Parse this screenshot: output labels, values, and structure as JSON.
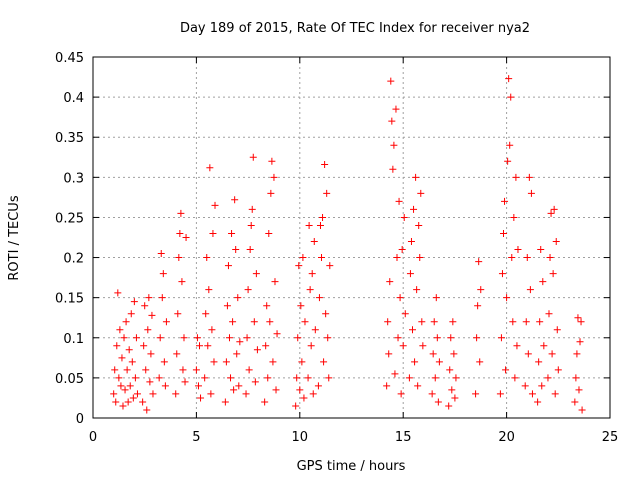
{
  "chart_data": {
    "type": "scatter",
    "title": "Day 189 of 2015, Rate Of TEC Index for receiver nya2",
    "xlabel": "GPS time / hours",
    "ylabel": "ROTI / TECUs",
    "xlim": [
      0,
      25
    ],
    "ylim": [
      0,
      0.45
    ],
    "xticks": [
      0,
      5,
      10,
      15,
      20,
      25
    ],
    "xtick_labels": [
      "0",
      "5",
      "10",
      "15",
      "20",
      "25"
    ],
    "yticks": [
      0,
      0.05,
      0.1,
      0.15,
      0.2,
      0.25,
      0.3,
      0.35,
      0.4,
      0.45
    ],
    "ytick_labels": [
      "0",
      "0.05",
      "0.1",
      "0.15",
      "0.2",
      "0.25",
      "0.3",
      "0.35",
      "0.4",
      "0.45"
    ],
    "grid": true,
    "marker": "plus",
    "series": [
      {
        "name": "ROTI",
        "color": "#ff0000",
        "points": [
          [
            1.0,
            0.03
          ],
          [
            1.05,
            0.06
          ],
          [
            1.1,
            0.02
          ],
          [
            1.15,
            0.09
          ],
          [
            1.2,
            0.156
          ],
          [
            1.25,
            0.05
          ],
          [
            1.3,
            0.11
          ],
          [
            1.35,
            0.04
          ],
          [
            1.4,
            0.075
          ],
          [
            1.45,
            0.015
          ],
          [
            1.5,
            0.1
          ],
          [
            1.55,
            0.035
          ],
          [
            1.6,
            0.12
          ],
          [
            1.65,
            0.06
          ],
          [
            1.7,
            0.02
          ],
          [
            1.75,
            0.085
          ],
          [
            1.8,
            0.04
          ],
          [
            1.85,
            0.13
          ],
          [
            1.9,
            0.07
          ],
          [
            1.95,
            0.025
          ],
          [
            2.0,
            0.145
          ],
          [
            2.05,
            0.05
          ],
          [
            2.1,
            0.1
          ],
          [
            2.15,
            0.03
          ],
          [
            2.4,
            0.02
          ],
          [
            2.45,
            0.09
          ],
          [
            2.5,
            0.14
          ],
          [
            2.55,
            0.06
          ],
          [
            2.6,
            0.01
          ],
          [
            2.65,
            0.11
          ],
          [
            2.7,
            0.15
          ],
          [
            2.75,
            0.045
          ],
          [
            2.8,
            0.08
          ],
          [
            2.85,
            0.128
          ],
          [
            2.9,
            0.03
          ],
          [
            3.2,
            0.05
          ],
          [
            3.25,
            0.1
          ],
          [
            3.3,
            0.205
          ],
          [
            3.35,
            0.15
          ],
          [
            3.4,
            0.18
          ],
          [
            3.45,
            0.07
          ],
          [
            3.5,
            0.04
          ],
          [
            3.55,
            0.12
          ],
          [
            4.0,
            0.03
          ],
          [
            4.05,
            0.08
          ],
          [
            4.1,
            0.13
          ],
          [
            4.15,
            0.2
          ],
          [
            4.2,
            0.23
          ],
          [
            4.25,
            0.255
          ],
          [
            4.3,
            0.17
          ],
          [
            4.35,
            0.06
          ],
          [
            4.4,
            0.1
          ],
          [
            4.45,
            0.045
          ],
          [
            4.5,
            0.225
          ],
          [
            5.0,
            0.06
          ],
          [
            5.05,
            0.1
          ],
          [
            5.1,
            0.04
          ],
          [
            5.15,
            0.09
          ],
          [
            5.2,
            0.025
          ],
          [
            5.4,
            0.05
          ],
          [
            5.45,
            0.13
          ],
          [
            5.5,
            0.2
          ],
          [
            5.55,
            0.09
          ],
          [
            5.6,
            0.16
          ],
          [
            5.65,
            0.312
          ],
          [
            5.7,
            0.03
          ],
          [
            5.75,
            0.11
          ],
          [
            5.8,
            0.23
          ],
          [
            5.85,
            0.07
          ],
          [
            5.9,
            0.265
          ],
          [
            6.4,
            0.02
          ],
          [
            6.45,
            0.07
          ],
          [
            6.5,
            0.14
          ],
          [
            6.55,
            0.19
          ],
          [
            6.6,
            0.1
          ],
          [
            6.65,
            0.05
          ],
          [
            6.7,
            0.23
          ],
          [
            6.75,
            0.12
          ],
          [
            6.8,
            0.035
          ],
          [
            6.85,
            0.272
          ],
          [
            6.9,
            0.21
          ],
          [
            6.95,
            0.08
          ],
          [
            7.0,
            0.15
          ],
          [
            7.05,
            0.04
          ],
          [
            7.1,
            0.095
          ],
          [
            7.4,
            0.03
          ],
          [
            7.45,
            0.1
          ],
          [
            7.5,
            0.16
          ],
          [
            7.55,
            0.06
          ],
          [
            7.6,
            0.21
          ],
          [
            7.65,
            0.24
          ],
          [
            7.7,
            0.26
          ],
          [
            7.75,
            0.325
          ],
          [
            7.8,
            0.12
          ],
          [
            7.85,
            0.045
          ],
          [
            7.9,
            0.18
          ],
          [
            7.95,
            0.085
          ],
          [
            8.3,
            0.02
          ],
          [
            8.35,
            0.09
          ],
          [
            8.4,
            0.14
          ],
          [
            8.45,
            0.05
          ],
          [
            8.5,
            0.23
          ],
          [
            8.55,
            0.12
          ],
          [
            8.6,
            0.28
          ],
          [
            8.65,
            0.32
          ],
          [
            8.7,
            0.07
          ],
          [
            8.75,
            0.3
          ],
          [
            8.8,
            0.17
          ],
          [
            8.85,
            0.035
          ],
          [
            8.9,
            0.105
          ],
          [
            9.8,
            0.015
          ],
          [
            9.85,
            0.05
          ],
          [
            9.9,
            0.1
          ],
          [
            9.95,
            0.19
          ],
          [
            10.0,
            0.035
          ],
          [
            10.05,
            0.14
          ],
          [
            10.1,
            0.07
          ],
          [
            10.15,
            0.2
          ],
          [
            10.2,
            0.025
          ],
          [
            10.25,
            0.12
          ],
          [
            10.4,
            0.05
          ],
          [
            10.45,
            0.24
          ],
          [
            10.5,
            0.16
          ],
          [
            10.55,
            0.09
          ],
          [
            10.6,
            0.18
          ],
          [
            10.65,
            0.03
          ],
          [
            10.7,
            0.22
          ],
          [
            10.75,
            0.11
          ],
          [
            10.9,
            0.04
          ],
          [
            10.95,
            0.15
          ],
          [
            11.0,
            0.24
          ],
          [
            11.05,
            0.2
          ],
          [
            11.1,
            0.25
          ],
          [
            11.15,
            0.07
          ],
          [
            11.2,
            0.316
          ],
          [
            11.25,
            0.13
          ],
          [
            11.3,
            0.28
          ],
          [
            11.35,
            0.1
          ],
          [
            11.4,
            0.05
          ],
          [
            11.45,
            0.19
          ],
          [
            14.2,
            0.04
          ],
          [
            14.25,
            0.12
          ],
          [
            14.3,
            0.08
          ],
          [
            14.35,
            0.17
          ],
          [
            14.4,
            0.42
          ],
          [
            14.45,
            0.37
          ],
          [
            14.5,
            0.31
          ],
          [
            14.55,
            0.34
          ],
          [
            14.6,
            0.055
          ],
          [
            14.65,
            0.385
          ],
          [
            14.7,
            0.2
          ],
          [
            14.75,
            0.1
          ],
          [
            14.8,
            0.27
          ],
          [
            14.85,
            0.15
          ],
          [
            14.9,
            0.03
          ],
          [
            14.95,
            0.21
          ],
          [
            15.0,
            0.09
          ],
          [
            15.05,
            0.25
          ],
          [
            15.1,
            0.13
          ],
          [
            15.3,
            0.05
          ],
          [
            15.35,
            0.18
          ],
          [
            15.4,
            0.22
          ],
          [
            15.45,
            0.11
          ],
          [
            15.5,
            0.26
          ],
          [
            15.55,
            0.07
          ],
          [
            15.6,
            0.3
          ],
          [
            15.65,
            0.16
          ],
          [
            15.7,
            0.04
          ],
          [
            15.75,
            0.24
          ],
          [
            15.8,
            0.2
          ],
          [
            15.85,
            0.28
          ],
          [
            15.9,
            0.12
          ],
          [
            15.95,
            0.09
          ],
          [
            16.4,
            0.03
          ],
          [
            16.45,
            0.08
          ],
          [
            16.5,
            0.12
          ],
          [
            16.55,
            0.05
          ],
          [
            16.6,
            0.15
          ],
          [
            16.65,
            0.1
          ],
          [
            16.7,
            0.02
          ],
          [
            16.75,
            0.07
          ],
          [
            17.2,
            0.015
          ],
          [
            17.25,
            0.06
          ],
          [
            17.3,
            0.1
          ],
          [
            17.35,
            0.035
          ],
          [
            17.4,
            0.12
          ],
          [
            17.45,
            0.08
          ],
          [
            17.5,
            0.025
          ],
          [
            17.55,
            0.05
          ],
          [
            18.5,
            0.03
          ],
          [
            18.55,
            0.1
          ],
          [
            18.6,
            0.14
          ],
          [
            18.65,
            0.195
          ],
          [
            18.7,
            0.07
          ],
          [
            18.75,
            0.16
          ],
          [
            19.7,
            0.03
          ],
          [
            19.75,
            0.1
          ],
          [
            19.8,
            0.18
          ],
          [
            19.85,
            0.23
          ],
          [
            19.9,
            0.27
          ],
          [
            19.95,
            0.06
          ],
          [
            20.0,
            0.15
          ],
          [
            20.05,
            0.32
          ],
          [
            20.1,
            0.423
          ],
          [
            20.15,
            0.34
          ],
          [
            20.2,
            0.4
          ],
          [
            20.25,
            0.2
          ],
          [
            20.3,
            0.12
          ],
          [
            20.35,
            0.25
          ],
          [
            20.4,
            0.05
          ],
          [
            20.45,
            0.3
          ],
          [
            20.5,
            0.09
          ],
          [
            20.55,
            0.21
          ],
          [
            20.9,
            0.04
          ],
          [
            20.95,
            0.12
          ],
          [
            21.0,
            0.2
          ],
          [
            21.05,
            0.08
          ],
          [
            21.1,
            0.3
          ],
          [
            21.15,
            0.16
          ],
          [
            21.2,
            0.28
          ],
          [
            21.25,
            0.03
          ],
          [
            21.5,
            0.02
          ],
          [
            21.55,
            0.07
          ],
          [
            21.6,
            0.12
          ],
          [
            21.65,
            0.21
          ],
          [
            21.7,
            0.04
          ],
          [
            21.75,
            0.17
          ],
          [
            21.8,
            0.09
          ],
          [
            22.0,
            0.05
          ],
          [
            22.05,
            0.13
          ],
          [
            22.1,
            0.2
          ],
          [
            22.15,
            0.255
          ],
          [
            22.2,
            0.08
          ],
          [
            22.25,
            0.18
          ],
          [
            22.3,
            0.26
          ],
          [
            22.35,
            0.03
          ],
          [
            22.4,
            0.22
          ],
          [
            22.45,
            0.11
          ],
          [
            22.5,
            0.06
          ],
          [
            23.3,
            0.02
          ],
          [
            23.35,
            0.05
          ],
          [
            23.4,
            0.08
          ],
          [
            23.45,
            0.125
          ],
          [
            23.5,
            0.035
          ],
          [
            23.55,
            0.095
          ],
          [
            23.6,
            0.12
          ],
          [
            23.65,
            0.01
          ]
        ]
      }
    ]
  }
}
